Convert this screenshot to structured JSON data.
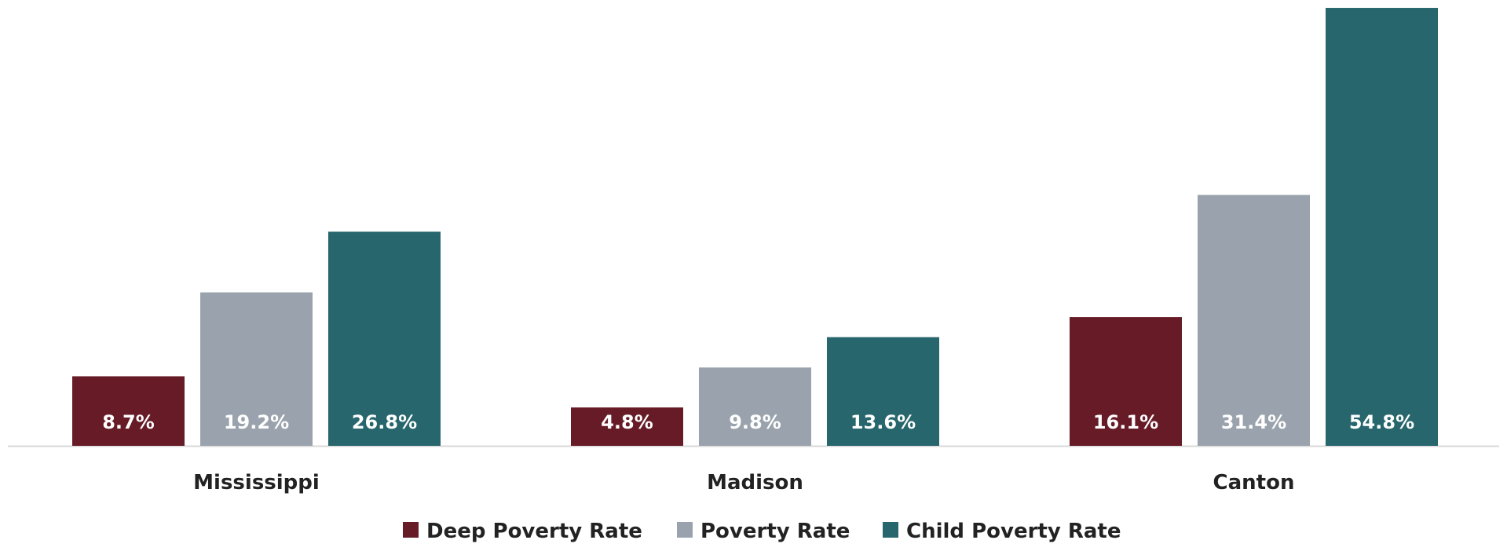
{
  "chart_data": {
    "type": "bar",
    "categories": [
      "Mississippi",
      "Madison",
      "Canton"
    ],
    "series": [
      {
        "name": "Deep Poverty Rate",
        "values": [
          8.7,
          4.8,
          16.1
        ],
        "labels": [
          "8.7%",
          "4.8%",
          "16.1%"
        ],
        "color": "#661b27"
      },
      {
        "name": "Poverty Rate",
        "values": [
          19.2,
          9.8,
          31.4
        ],
        "labels": [
          "19.2%",
          "9.8%",
          "31.4%"
        ],
        "color": "#9aa3ad"
      },
      {
        "name": "Child Poverty Rate",
        "values": [
          26.8,
          13.6,
          54.8
        ],
        "labels": [
          "26.8%",
          "13.6%",
          "54.8%"
        ],
        "color": "#26666c"
      }
    ],
    "legend_position": "bottom",
    "grid": false,
    "ylim": [
      0,
      55
    ],
    "baseline_color": "#d9d9d9"
  }
}
